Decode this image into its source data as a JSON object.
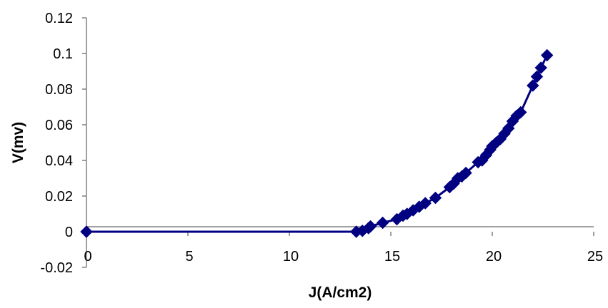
{
  "chart_data": {
    "type": "scatter",
    "title": "",
    "xlabel": "J(A/cm2)",
    "ylabel": "V(mv)",
    "xlim": [
      0,
      25
    ],
    "ylim": [
      -0.02,
      0.12
    ],
    "x_ticks": [
      "0",
      "5",
      "10",
      "15",
      "20",
      "25"
    ],
    "y_ticks": [
      "-0.02",
      "0",
      "0.02",
      "0.04",
      "0.06",
      "0.08",
      "0.1",
      "0.12"
    ],
    "grid": false,
    "legend": "none",
    "marker": "diamond",
    "line": "connected",
    "color": "#000080",
    "series": [
      {
        "x": [
          0,
          13.3,
          13.6,
          13.9,
          14.0,
          14.6,
          15.3,
          15.6,
          15.8,
          16.1,
          16.4,
          16.7,
          17.2,
          17.9,
          18.1,
          18.3,
          18.5,
          18.7,
          19.3,
          19.5,
          19.7,
          19.9,
          20.0,
          20.2,
          20.4,
          20.6,
          20.8,
          21.0,
          21.2,
          21.4,
          22.0,
          22.2,
          22.4,
          22.7
        ],
        "y": [
          0,
          0,
          0.0005,
          0.002,
          0.003,
          0.005,
          0.007,
          0.009,
          0.01,
          0.012,
          0.014,
          0.016,
          0.019,
          0.025,
          0.027,
          0.03,
          0.031,
          0.033,
          0.039,
          0.04,
          0.043,
          0.046,
          0.048,
          0.05,
          0.052,
          0.055,
          0.058,
          0.062,
          0.065,
          0.067,
          0.082,
          0.087,
          0.092,
          0.099
        ]
      }
    ]
  }
}
